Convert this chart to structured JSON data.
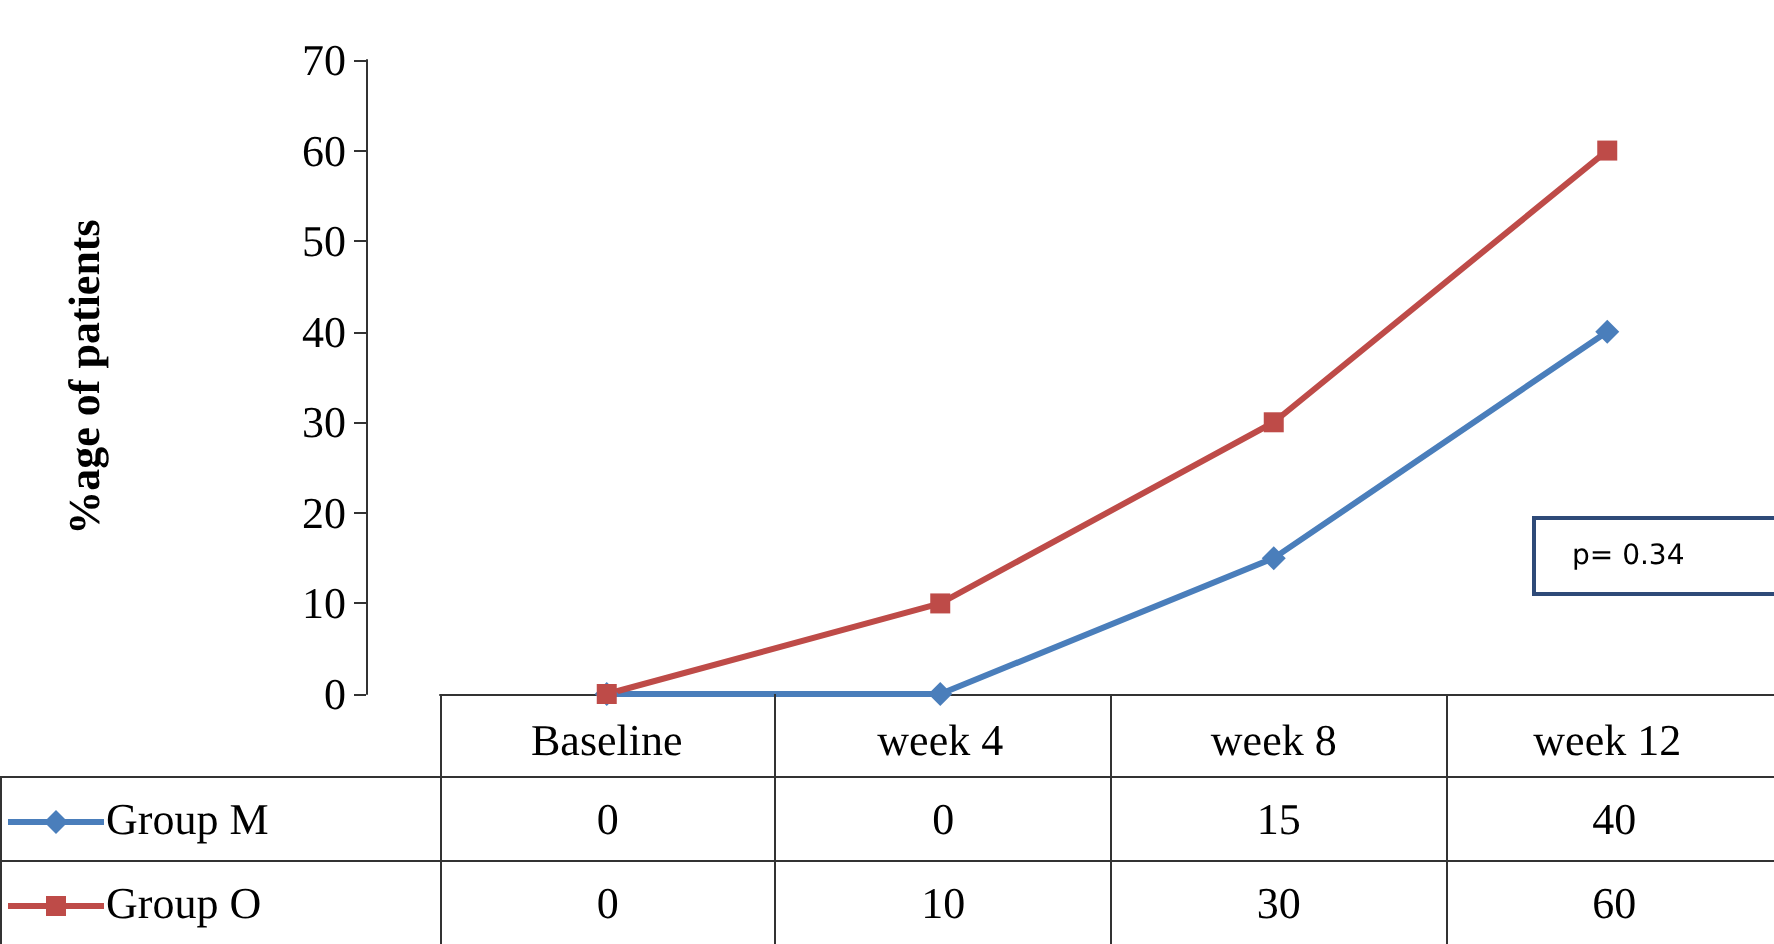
{
  "chart_data": {
    "type": "line",
    "ylabel": "%age of patients",
    "categories": [
      "Baseline",
      "week 4",
      "week 8",
      "week 12"
    ],
    "series": [
      {
        "name": "Group M",
        "color": "#4a7ebb",
        "marker": "diamond",
        "values": [
          0,
          0,
          15,
          40
        ]
      },
      {
        "name": "Group O",
        "color": "#be4b48",
        "marker": "square",
        "values": [
          0,
          10,
          30,
          60
        ]
      }
    ],
    "ylim": [
      0,
      70
    ],
    "yticks": [
      0,
      10,
      20,
      30,
      40,
      50,
      60,
      70
    ],
    "grid": false,
    "legend": "bottom",
    "data_labels": true,
    "annotations": [
      "p= 0.34"
    ]
  }
}
